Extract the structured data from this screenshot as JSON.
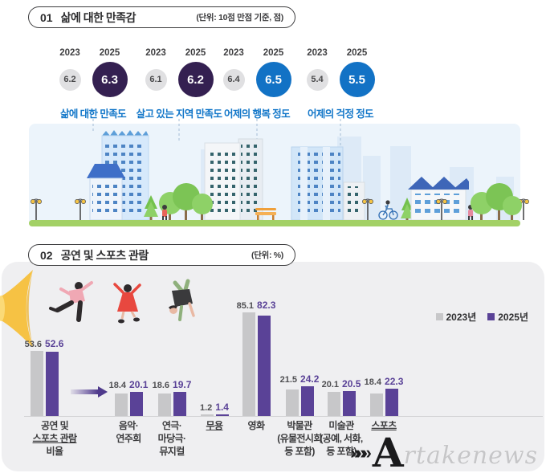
{
  "section1": {
    "number": "01",
    "title": "삶에 대한 만족감",
    "unit": "(단위: 10점 만점 기준, 점)",
    "year_prev": "2023",
    "year_curr": "2025",
    "colors": {
      "prev_circle": "#e0e0e2",
      "dark_purple": "#342051",
      "blue": "#1272c5",
      "label_blue": "#1377c9"
    },
    "groups": [
      {
        "label": "삶에 대한 만족도",
        "prev": "6.2",
        "curr": "6.3",
        "accent": "#342051"
      },
      {
        "label": "살고 있는 지역 만족도",
        "prev": "6.1",
        "curr": "6.2",
        "accent": "#342051"
      },
      {
        "label": "어제의 행복 정도",
        "prev": "6.4",
        "curr": "6.5",
        "accent": "#1272c5"
      },
      {
        "label": "어제의 걱정 정도",
        "prev": "5.4",
        "curr": "5.5",
        "accent": "#1272c5"
      }
    ]
  },
  "section2": {
    "number": "02",
    "title": "공연 및 스포츠 관람",
    "unit": "(단위: %)",
    "legend": [
      {
        "label": "2023년",
        "color": "#c7c7c9"
      },
      {
        "label": "2025년",
        "color": "#5a4297"
      }
    ]
  },
  "chart_data": [
    {
      "type": "table",
      "title": "삶에 대한 만족감",
      "unit": "점 (10점 만점 기준)",
      "columns": [
        "2023",
        "2025"
      ],
      "rows": [
        {
          "category": "삶에 대한 만족도",
          "2023": 6.2,
          "2025": 6.3
        },
        {
          "category": "살고 있는 지역 만족도",
          "2023": 6.1,
          "2025": 6.2
        },
        {
          "category": "어제의 행복 정도",
          "2023": 6.4,
          "2025": 6.5
        },
        {
          "category": "어제의 걱정 정도",
          "2023": 5.4,
          "2025": 5.5
        }
      ]
    },
    {
      "type": "bar",
      "title": "공연 및 스포츠 관람",
      "unit": "%",
      "ylim": [
        0,
        90
      ],
      "legend_position": "top-right",
      "series": [
        "2023년",
        "2025년"
      ],
      "series_colors": {
        "2023년": "#c7c7c9",
        "2025년": "#5a4297"
      },
      "groups": [
        {
          "category": "공연 및 스포츠 관람 비율",
          "lines": [
            "공연 및",
            "스포츠 관람",
            "비율"
          ],
          "underline": [
            1
          ],
          "values": {
            "2023년": 53.6,
            "2025년": 52.6
          }
        },
        {
          "category": "음악·연주회",
          "lines": [
            "음악·",
            "연주회"
          ],
          "underline": [],
          "values": {
            "2023년": 18.4,
            "2025년": 20.1
          }
        },
        {
          "category": "연극·마당극·뮤지컬",
          "lines": [
            "연극·",
            "마당극·",
            "뮤지컬"
          ],
          "underline": [],
          "values": {
            "2023년": 18.6,
            "2025년": 19.7
          }
        },
        {
          "category": "무용",
          "lines": [
            "무용"
          ],
          "underline": [
            0
          ],
          "values": {
            "2023년": 1.2,
            "2025년": 1.4
          }
        },
        {
          "category": "영화",
          "lines": [
            "영화"
          ],
          "underline": [],
          "values": {
            "2023년": 85.1,
            "2025년": 82.3
          }
        },
        {
          "category": "박물관(유물전시회 등 포함)",
          "lines": [
            "박물관",
            "(유물전시회",
            "등 포함)"
          ],
          "underline": [],
          "values": {
            "2023년": 21.5,
            "2025년": 24.2
          }
        },
        {
          "category": "미술관(공예, 서화, 등 포함)",
          "lines": [
            "미술관",
            "(공예, 서화,",
            "등 포함)"
          ],
          "underline": [],
          "values": {
            "2023년": 20.1,
            "2025년": 20.5
          }
        },
        {
          "category": "스포츠",
          "lines": [
            "스포츠"
          ],
          "underline": [
            0
          ],
          "values": {
            "2023년": 18.4,
            "2025년": 22.3
          }
        }
      ]
    }
  ],
  "watermark": {
    "chevrons": "»»»",
    "initial": "A",
    "script": "rtakenews"
  }
}
